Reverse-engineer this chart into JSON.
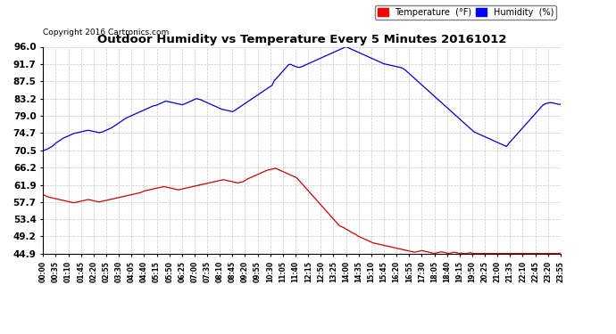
{
  "title": "Outdoor Humidity vs Temperature Every 5 Minutes 20161012",
  "copyright": "Copyright 2016 Cartronics.com",
  "legend_temp": "Temperature  (°F)",
  "legend_hum": "Humidity  (%)",
  "temp_color": "#cc0000",
  "hum_color": "#0000cc",
  "background_color": "#ffffff",
  "grid_color": "#c8c8c8",
  "yticks": [
    44.9,
    49.2,
    53.4,
    57.7,
    61.9,
    66.2,
    70.5,
    74.7,
    79.0,
    83.2,
    87.5,
    91.7,
    96.0
  ],
  "ymin": 44.9,
  "ymax": 96.0,
  "xtick_labels": [
    "00:00",
    "00:35",
    "01:10",
    "01:45",
    "02:20",
    "02:55",
    "03:30",
    "04:05",
    "04:40",
    "05:15",
    "05:50",
    "06:25",
    "07:00",
    "07:35",
    "08:10",
    "08:45",
    "09:20",
    "09:55",
    "10:30",
    "11:05",
    "11:40",
    "12:15",
    "12:50",
    "13:25",
    "14:00",
    "14:35",
    "15:10",
    "15:45",
    "16:20",
    "16:55",
    "17:30",
    "18:05",
    "18:40",
    "19:15",
    "19:50",
    "20:25",
    "21:00",
    "21:35",
    "22:10",
    "22:45",
    "23:20",
    "23:55"
  ],
  "n_points": 288,
  "humidity_data": [
    70.5,
    70.5,
    70.7,
    70.9,
    71.2,
    71.4,
    71.8,
    72.2,
    72.5,
    72.8,
    73.1,
    73.4,
    73.6,
    73.8,
    74.0,
    74.2,
    74.4,
    74.6,
    74.7,
    74.8,
    74.9,
    75.0,
    75.1,
    75.2,
    75.3,
    75.4,
    75.3,
    75.2,
    75.1,
    75.0,
    74.9,
    74.8,
    74.9,
    75.0,
    75.2,
    75.4,
    75.6,
    75.8,
    76.0,
    76.3,
    76.6,
    76.9,
    77.2,
    77.5,
    77.8,
    78.1,
    78.4,
    78.6,
    78.8,
    79.0,
    79.2,
    79.4,
    79.6,
    79.8,
    80.0,
    80.2,
    80.4,
    80.6,
    80.8,
    81.0,
    81.2,
    81.4,
    81.5,
    81.6,
    81.8,
    82.0,
    82.2,
    82.4,
    82.6,
    82.5,
    82.4,
    82.3,
    82.2,
    82.1,
    82.0,
    81.9,
    81.8,
    81.7,
    81.8,
    82.0,
    82.2,
    82.4,
    82.6,
    82.8,
    83.0,
    83.2,
    83.1,
    83.0,
    82.8,
    82.6,
    82.4,
    82.2,
    82.0,
    81.8,
    81.6,
    81.4,
    81.2,
    81.0,
    80.8,
    80.6,
    80.5,
    80.4,
    80.3,
    80.2,
    80.1,
    80.0,
    80.2,
    80.5,
    80.8,
    81.1,
    81.4,
    81.7,
    82.0,
    82.3,
    82.6,
    82.9,
    83.2,
    83.5,
    83.8,
    84.1,
    84.4,
    84.7,
    85.0,
    85.3,
    85.6,
    85.9,
    86.2,
    86.5,
    87.5,
    88.0,
    88.5,
    89.0,
    89.5,
    90.0,
    90.5,
    91.0,
    91.5,
    91.7,
    91.5,
    91.3,
    91.1,
    91.0,
    90.9,
    91.0,
    91.2,
    91.4,
    91.6,
    91.8,
    92.0,
    92.2,
    92.4,
    92.6,
    92.8,
    93.0,
    93.2,
    93.4,
    93.6,
    93.8,
    94.0,
    94.2,
    94.4,
    94.6,
    94.8,
    95.0,
    95.2,
    95.4,
    95.6,
    95.8,
    96.0,
    95.8,
    95.6,
    95.4,
    95.2,
    95.0,
    94.8,
    94.6,
    94.4,
    94.2,
    94.0,
    93.8,
    93.6,
    93.4,
    93.2,
    93.0,
    92.8,
    92.6,
    92.4,
    92.2,
    92.0,
    91.8,
    91.7,
    91.6,
    91.5,
    91.4,
    91.3,
    91.2,
    91.1,
    91.0,
    90.9,
    90.8,
    90.5,
    90.2,
    89.8,
    89.4,
    89.0,
    88.6,
    88.2,
    87.8,
    87.4,
    87.0,
    86.6,
    86.2,
    85.8,
    85.4,
    85.0,
    84.6,
    84.2,
    83.8,
    83.4,
    83.0,
    82.6,
    82.2,
    81.8,
    81.4,
    81.0,
    80.6,
    80.2,
    79.8,
    79.4,
    79.0,
    78.6,
    78.2,
    77.8,
    77.4,
    77.0,
    76.6,
    76.2,
    75.8,
    75.4,
    75.0,
    74.8,
    74.6,
    74.4,
    74.2,
    74.0,
    73.8,
    73.6,
    73.4,
    73.2,
    73.0,
    72.8,
    72.6,
    72.4,
    72.2,
    72.0,
    71.8,
    71.6,
    71.4,
    72.0,
    72.5,
    73.0,
    73.5,
    74.0,
    74.5,
    75.0,
    75.5,
    76.0,
    76.5,
    77.0,
    77.5,
    78.0,
    78.5,
    79.0,
    79.5,
    80.0,
    80.5,
    81.0,
    81.5,
    81.8,
    82.0,
    82.1,
    82.2,
    82.2,
    82.1,
    82.0,
    81.9,
    81.8,
    81.8
  ],
  "temperature_data": [
    59.5,
    59.3,
    59.1,
    58.9,
    58.8,
    58.7,
    58.6,
    58.5,
    58.4,
    58.3,
    58.2,
    58.1,
    58.0,
    57.9,
    57.8,
    57.7,
    57.6,
    57.5,
    57.6,
    57.7,
    57.8,
    57.9,
    58.0,
    58.1,
    58.2,
    58.3,
    58.2,
    58.1,
    58.0,
    57.9,
    57.8,
    57.7,
    57.8,
    57.9,
    58.0,
    58.1,
    58.2,
    58.3,
    58.4,
    58.5,
    58.6,
    58.7,
    58.8,
    58.9,
    59.0,
    59.1,
    59.2,
    59.3,
    59.4,
    59.5,
    59.6,
    59.7,
    59.8,
    59.9,
    60.0,
    60.2,
    60.4,
    60.5,
    60.6,
    60.7,
    60.8,
    60.9,
    61.0,
    61.1,
    61.2,
    61.3,
    61.4,
    61.5,
    61.4,
    61.3,
    61.2,
    61.1,
    61.0,
    60.9,
    60.8,
    60.7,
    60.8,
    60.9,
    61.0,
    61.1,
    61.2,
    61.3,
    61.4,
    61.5,
    61.6,
    61.7,
    61.8,
    61.9,
    62.0,
    62.1,
    62.2,
    62.3,
    62.4,
    62.5,
    62.6,
    62.7,
    62.8,
    62.9,
    63.0,
    63.1,
    63.2,
    63.1,
    63.0,
    62.9,
    62.8,
    62.7,
    62.6,
    62.5,
    62.4,
    62.5,
    62.6,
    62.7,
    63.0,
    63.3,
    63.5,
    63.7,
    63.9,
    64.1,
    64.3,
    64.5,
    64.7,
    64.9,
    65.1,
    65.3,
    65.5,
    65.6,
    65.7,
    65.8,
    65.9,
    66.0,
    65.8,
    65.6,
    65.4,
    65.2,
    65.0,
    64.8,
    64.6,
    64.4,
    64.2,
    64.0,
    63.8,
    63.5,
    63.0,
    62.5,
    62.0,
    61.5,
    61.0,
    60.5,
    60.0,
    59.5,
    59.0,
    58.5,
    58.0,
    57.5,
    57.0,
    56.5,
    56.0,
    55.5,
    55.0,
    54.5,
    54.0,
    53.5,
    53.0,
    52.5,
    52.0,
    51.7,
    51.5,
    51.3,
    51.0,
    50.8,
    50.5,
    50.2,
    50.0,
    49.8,
    49.5,
    49.2,
    49.0,
    48.8,
    48.6,
    48.4,
    48.2,
    48.0,
    47.8,
    47.6,
    47.5,
    47.4,
    47.3,
    47.2,
    47.1,
    47.0,
    46.9,
    46.8,
    46.7,
    46.6,
    46.5,
    46.4,
    46.3,
    46.2,
    46.1,
    46.0,
    45.9,
    45.8,
    45.7,
    45.6,
    45.5,
    45.4,
    45.3,
    45.4,
    45.5,
    45.6,
    45.7,
    45.6,
    45.5,
    45.4,
    45.3,
    45.2,
    45.1,
    45.0,
    45.1,
    45.2,
    45.3,
    45.4,
    45.3,
    45.2,
    45.1,
    45.0,
    45.1,
    45.2,
    45.3,
    45.2,
    45.1,
    45.0,
    45.1,
    45.0,
    45.0,
    45.0,
    45.1,
    45.2,
    45.0,
    45.0,
    45.0,
    45.0,
    45.0,
    45.0,
    45.0,
    45.0,
    45.0,
    45.0,
    45.0,
    45.0,
    45.0,
    45.0,
    45.0,
    45.0,
    45.0,
    45.0,
    45.0,
    45.0,
    45.0,
    45.0,
    45.0,
    45.0,
    45.0,
    45.0,
    45.0,
    45.0,
    45.0,
    45.0,
    45.0,
    45.0,
    45.0,
    45.0,
    45.0,
    45.0,
    45.0,
    45.0,
    45.0,
    45.0,
    45.0,
    45.0,
    45.0,
    45.0,
    45.0,
    45.0,
    45.0,
    45.0,
    45.0,
    45.1
  ]
}
